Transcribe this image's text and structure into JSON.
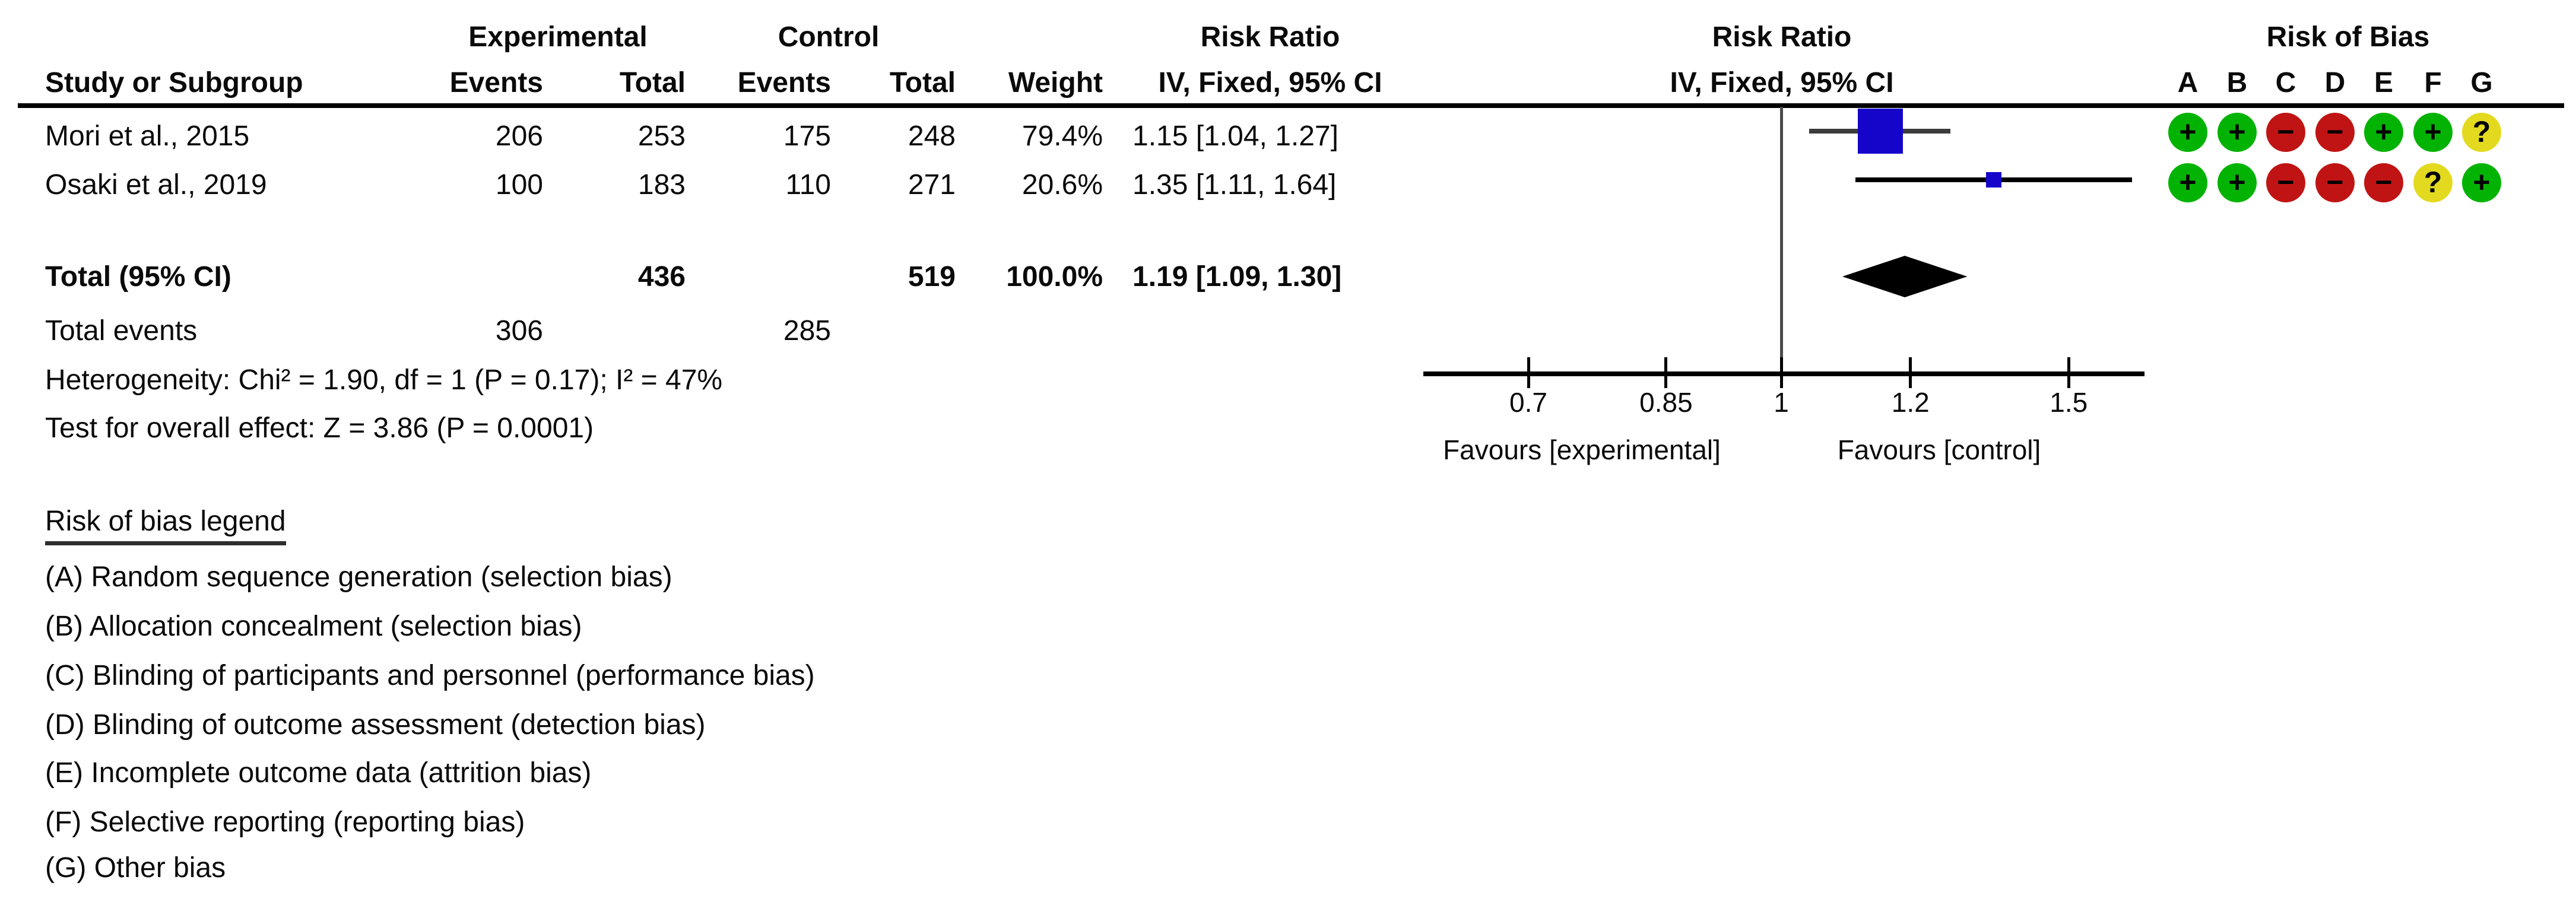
{
  "title_row": {
    "experimental": "Experimental",
    "control": "Control",
    "risk_ratio": "Risk Ratio",
    "risk_of_bias": "Risk of Bias"
  },
  "header_row": {
    "study": "Study or Subgroup",
    "events": "Events",
    "total": "Total",
    "weight": "Weight",
    "iv_fixed": "IV, Fixed, 95% CI"
  },
  "bias_letters": [
    "A",
    "B",
    "C",
    "D",
    "E",
    "F",
    "G"
  ],
  "rows": [
    {
      "study": "Mori et al., 2015",
      "exp_events": "206",
      "exp_total": "253",
      "ctl_events": "175",
      "ctl_total": "248",
      "weight": "79.4%",
      "rr_text": "1.15 [1.04, 1.27]",
      "bias": [
        "+",
        "+",
        "−",
        "−",
        "+",
        "+",
        "?"
      ]
    },
    {
      "study": "Osaki et al., 2019",
      "exp_events": "100",
      "exp_total": "183",
      "ctl_events": "110",
      "ctl_total": "271",
      "weight": "20.6%",
      "rr_text": "1.35 [1.11, 1.64]",
      "bias": [
        "+",
        "+",
        "−",
        "−",
        "−",
        "?",
        "+"
      ]
    }
  ],
  "totals": {
    "label": "Total (95% CI)",
    "exp_total": "436",
    "ctl_total": "519",
    "weight": "100.0%",
    "rr_text": "1.19 [1.09, 1.30]"
  },
  "total_events": {
    "label": "Total events",
    "exp": "306",
    "ctl": "285"
  },
  "heterogeneity": "Heterogeneity: Chi² = 1.90, df = 1 (P = 0.17); I² = 47%",
  "overall": "Test for overall effect: Z = 3.86 (P = 0.0001)",
  "axis": {
    "tick_labels": [
      "0.7",
      "0.85",
      "1",
      "1.2",
      "1.5"
    ],
    "favours_left": "Favours [experimental]",
    "favours_right": "Favours [control]"
  },
  "legend": {
    "title": "Risk of bias legend",
    "items": [
      "(A) Random sequence generation (selection bias)",
      "(B) Allocation concealment (selection bias)",
      "(C) Blinding of participants and personnel (performance bias)",
      "(D) Blinding of outcome assessment (detection bias)",
      "(E) Incomplete outcome data (attrition bias)",
      "(F) Selective reporting (reporting bias)",
      "(G) Other bias"
    ]
  },
  "colors": {
    "low_risk": "#03b303",
    "high_risk": "#c01414",
    "unclear": "#e3da1f",
    "marker_blue": "#1505cb"
  },
  "chart_data": {
    "type": "forest",
    "effect_measure": "Risk Ratio",
    "method": "IV, Fixed, 95% CI",
    "x_scale": "log",
    "ticks": [
      0.7,
      0.85,
      1,
      1.2,
      1.5
    ],
    "studies": [
      {
        "name": "Mori et al., 2015",
        "exp_events": 206,
        "exp_total": 253,
        "ctl_events": 175,
        "ctl_total": 248,
        "weight_pct": 79.4,
        "rr": 1.15,
        "ci": [
          1.04,
          1.27
        ],
        "risk_of_bias": {
          "A": "+",
          "B": "+",
          "C": "-",
          "D": "-",
          "E": "+",
          "F": "+",
          "G": "?"
        }
      },
      {
        "name": "Osaki et al., 2019",
        "exp_events": 100,
        "exp_total": 183,
        "ctl_events": 110,
        "ctl_total": 271,
        "weight_pct": 20.6,
        "rr": 1.35,
        "ci": [
          1.11,
          1.64
        ],
        "risk_of_bias": {
          "A": "+",
          "B": "+",
          "C": "-",
          "D": "-",
          "E": "-",
          "F": "?",
          "G": "+"
        }
      }
    ],
    "total": {
      "label": "Total (95% CI)",
      "exp_total": 436,
      "ctl_total": 519,
      "exp_events": 306,
      "ctl_events": 285,
      "weight_pct": 100.0,
      "rr": 1.19,
      "ci": [
        1.09,
        1.3
      ]
    },
    "heterogeneity": "Chi² = 1.90, df = 1 (P = 0.17); I² = 47%",
    "overall_effect": "Z = 3.86 (P = 0.0001)",
    "favours": [
      "Favours [experimental]",
      "Favours [control]"
    ]
  }
}
